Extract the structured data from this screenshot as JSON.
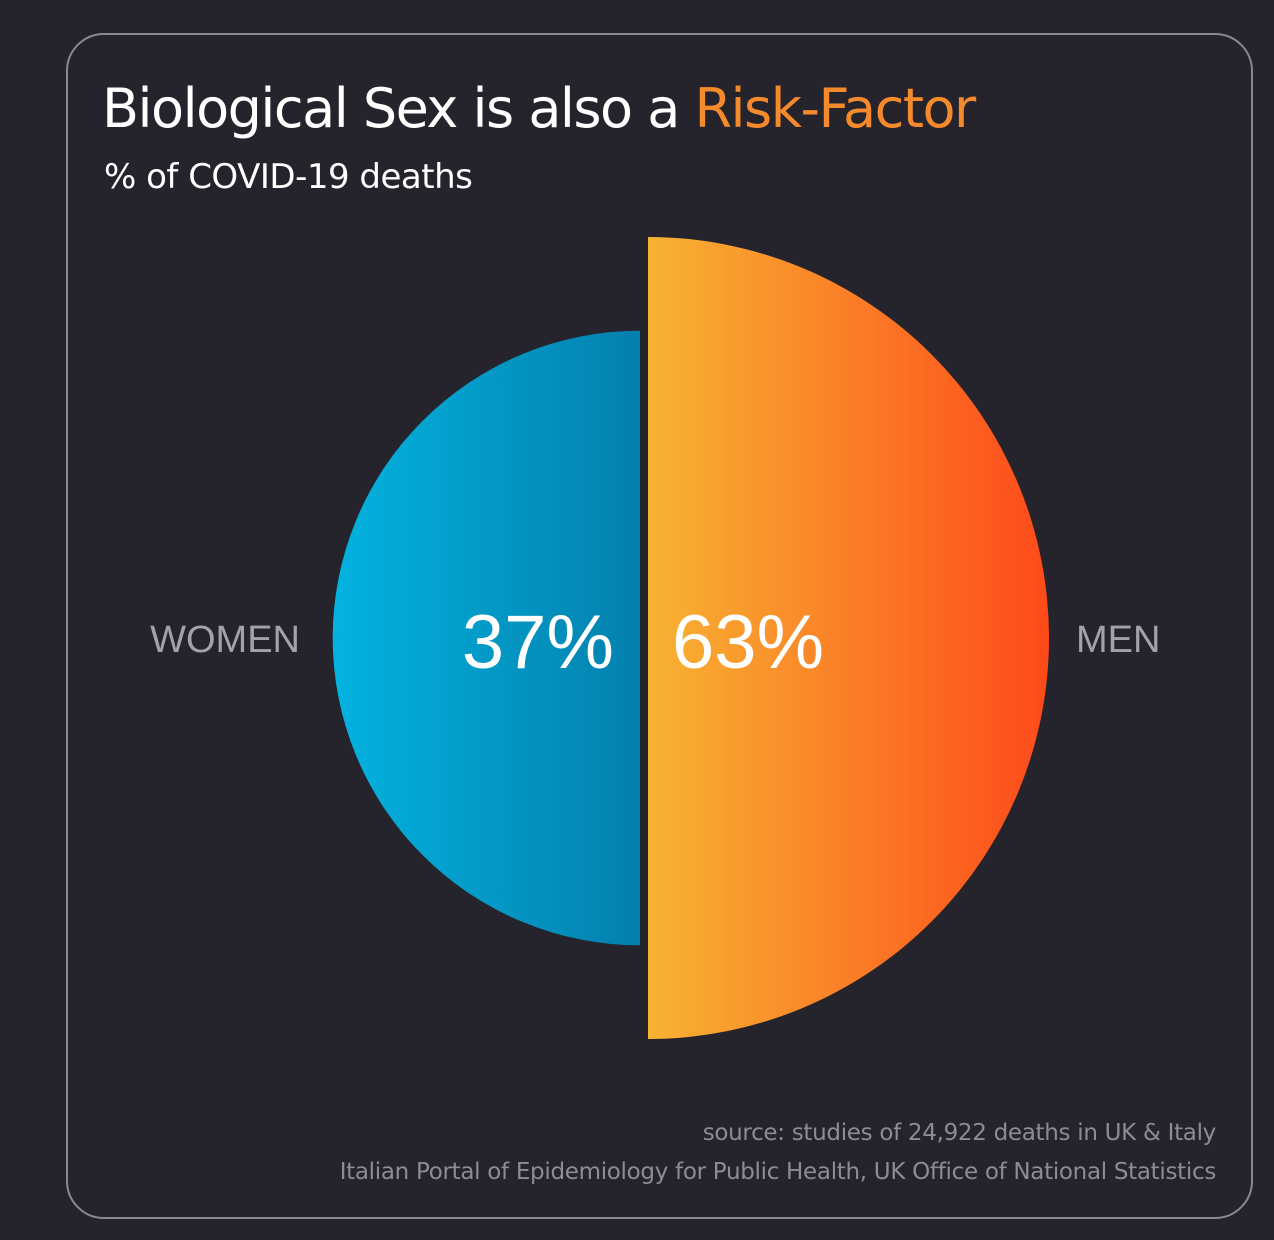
{
  "title": {
    "prefix": "Biological Sex is also a ",
    "highlight": "Risk-Factor"
  },
  "subtitle": "% of COVID-19 deaths",
  "colors": {
    "background": "#25232b",
    "accent": "#f58a2c",
    "women_gradient": [
      "#03b3e0",
      "#0380ad"
    ],
    "men_gradient": [
      "#f8b333",
      "#fd4a1a"
    ]
  },
  "chart_data": {
    "type": "pie",
    "categories": [
      "WOMEN",
      "MEN"
    ],
    "values": [
      37,
      63
    ],
    "value_labels": [
      "37%",
      "63%"
    ],
    "title": "Biological Sex is also a Risk-Factor",
    "subtitle": "% of COVID-19 deaths"
  },
  "source": {
    "line1": "source: studies of 24,922 deaths in UK & Italy",
    "line2": "Italian Portal of Epidemiology for Public Health, UK Office of National Statistics"
  }
}
